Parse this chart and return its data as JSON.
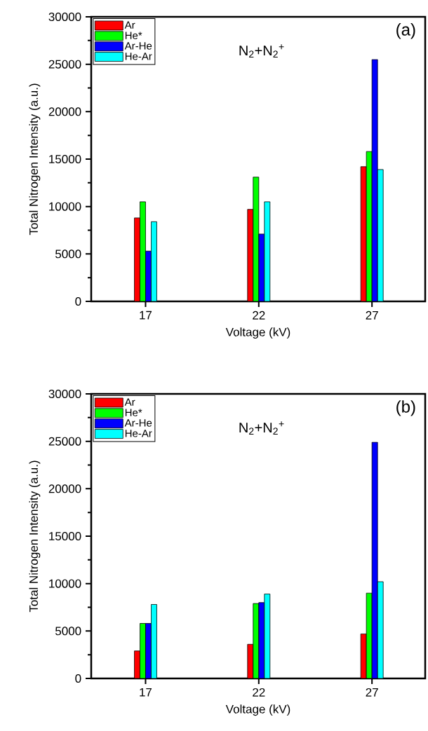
{
  "chart_data": [
    {
      "type": "bar",
      "categories": [
        "17",
        "22",
        "27"
      ],
      "xlabel": "Voltage (kV)",
      "ylabel": "Total Nitrogen Intensity (a.u.)",
      "ylim": [
        0,
        30000
      ],
      "yticks": [
        0,
        5000,
        10000,
        15000,
        20000,
        25000,
        30000
      ],
      "legend": "top left",
      "grid": false,
      "annotations": [
        "(a)",
        "N$_{2}$+N$_{2}$$^{+}$"
      ],
      "series": [
        {
          "name": "Ar",
          "color": "#ff0000",
          "values": [
            8800,
            9700,
            14200
          ]
        },
        {
          "name": "He*",
          "color": "#00ff00",
          "values": [
            10500,
            13100,
            15800
          ]
        },
        {
          "name": "Ar-He",
          "color": "#0000ff",
          "values": [
            5300,
            7100,
            25500
          ]
        },
        {
          "name": "He-Ar",
          "color": "#00ffff",
          "values": [
            8400,
            10500,
            13900
          ]
        }
      ]
    },
    {
      "type": "bar",
      "categories": [
        "17",
        "22",
        "27"
      ],
      "xlabel": "Voltage (kV)",
      "ylabel": "Total Nitrogen Intensity (a.u.)",
      "ylim": [
        0,
        30000
      ],
      "yticks": [
        0,
        5000,
        10000,
        15000,
        20000,
        25000,
        30000
      ],
      "legend": "top left",
      "grid": false,
      "annotations": [
        "(b)",
        "N$_{2}$+N$_{2}$$^{+}$"
      ],
      "series": [
        {
          "name": "Ar",
          "color": "#ff0000",
          "values": [
            2900,
            3600,
            4700
          ]
        },
        {
          "name": "He*",
          "color": "#00ff00",
          "values": [
            5800,
            7900,
            9000
          ]
        },
        {
          "name": "Ar-He",
          "color": "#0000ff",
          "values": [
            5800,
            8000,
            24900
          ]
        },
        {
          "name": "He-Ar",
          "color": "#00ffff",
          "values": [
            7800,
            8900,
            10200
          ]
        }
      ]
    }
  ]
}
